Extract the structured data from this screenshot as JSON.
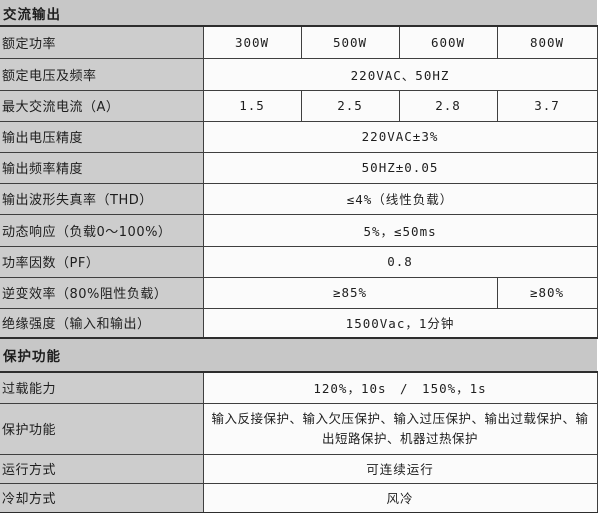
{
  "colors": {
    "section_header_bg": "#c7c7c7",
    "label_cell_bg": "#cdcdcd",
    "value_cell_bg": "#fbfbfb",
    "border": "#3f3f3f",
    "text": "#1e1e1e"
  },
  "table": {
    "sections": [
      {
        "header": "交流输出",
        "rows": [
          {
            "label": "额定功率",
            "cells": [
              "300W",
              "500W",
              "600W",
              "800W"
            ]
          },
          {
            "label": "额定电压及频率",
            "value": "220VAC、50HZ"
          },
          {
            "label": "最大交流电流（A）",
            "cells": [
              "1.5",
              "2.5",
              "2.8",
              "3.7"
            ]
          },
          {
            "label": "输出电压精度",
            "value": "220VAC±3%"
          },
          {
            "label": "输出频率精度",
            "value": "50HZ±0.05"
          },
          {
            "label": "输出波形失真率（THD）",
            "value": "≤4%（线性负载）"
          },
          {
            "label": "动态响应（负载0～100%）",
            "value": "5%，≤50ms"
          },
          {
            "label": "功率因数（PF）",
            "value": "0.8"
          },
          {
            "label": "逆变效率（80%阻性负载）",
            "value_main": "≥85%",
            "value_last": "≥80%"
          },
          {
            "label": "绝缘强度（输入和输出）",
            "value": "1500Vac，1分钟"
          }
        ]
      },
      {
        "header": "保护功能",
        "rows": [
          {
            "label": "过载能力",
            "value": "120%，10s　/　150%，1s"
          },
          {
            "label": "保护功能",
            "value": "输入反接保护、输入欠压保护、输入过压保护、输出过载保护、输出短路保护、机器过热保护"
          },
          {
            "label": "运行方式",
            "value": "可连续运行"
          },
          {
            "label": "冷却方式",
            "value": "风冷"
          }
        ]
      }
    ]
  }
}
